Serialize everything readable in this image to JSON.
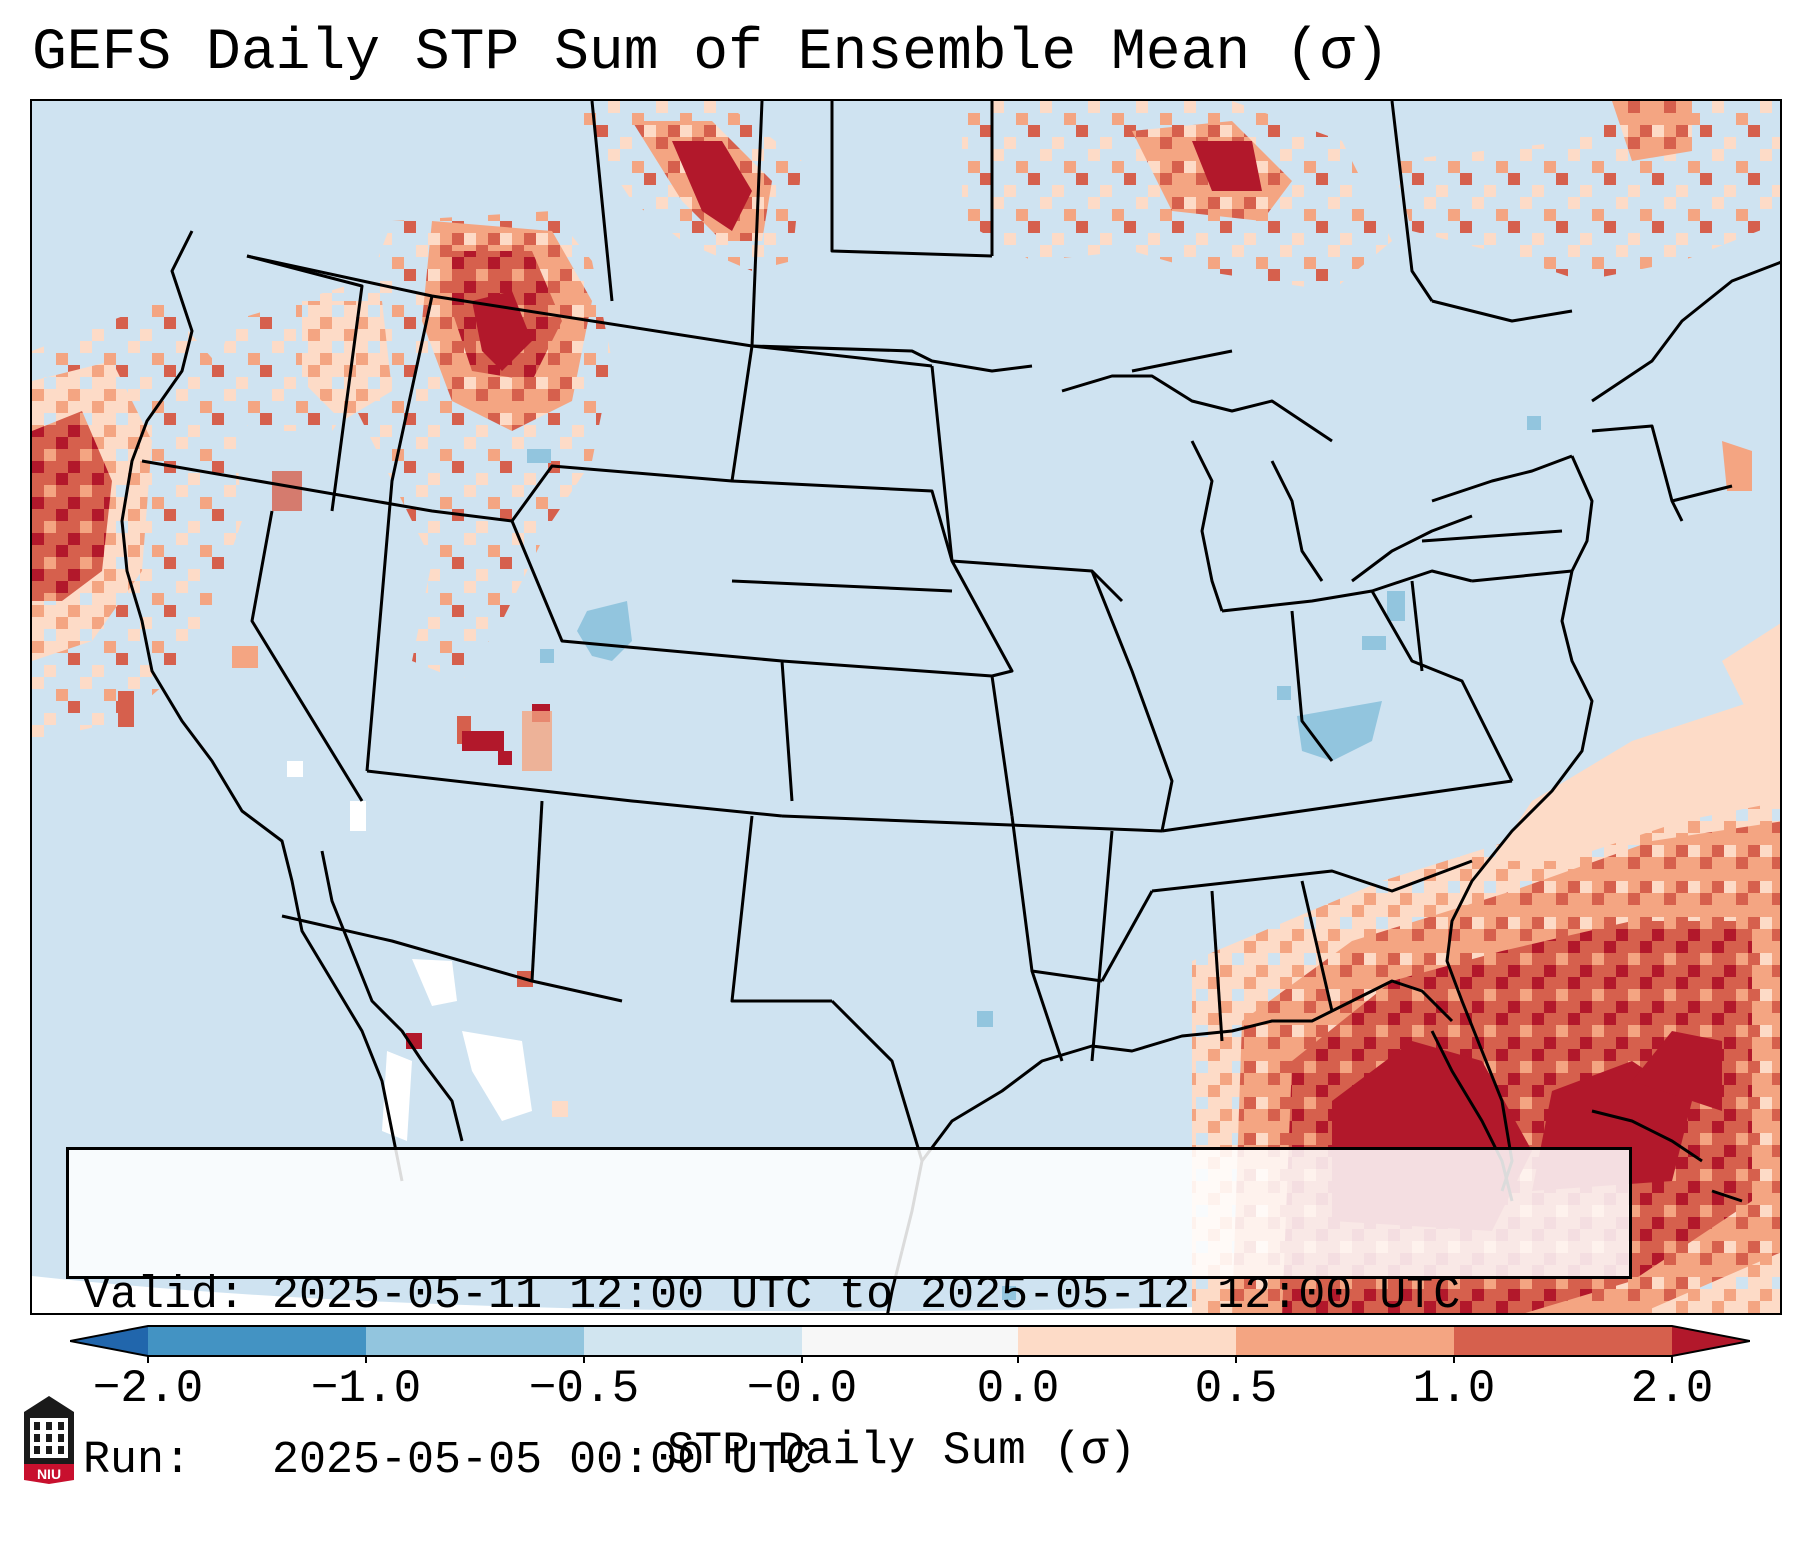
{
  "title": "GEFS Daily STP Sum of Ensemble Mean (σ)",
  "info": {
    "valid": "Valid: 2025-05-11 12:00 UTC to 2025-05-12 12:00 UTC",
    "run": "Run:   2025-05-05 00:00 UTC"
  },
  "colorbar": {
    "label": "STP Daily Sum (σ)",
    "ticks": [
      "−2.0",
      "−1.0",
      "−0.5",
      "−0.0",
      "0.0",
      "0.5",
      "1.0",
      "2.0"
    ],
    "bins": [
      {
        "range": "below -2.0",
        "color": "#2166ac"
      },
      {
        "range": "-2.0 to -1.0",
        "color": "#4393c3"
      },
      {
        "range": "-1.0 to -0.5",
        "color": "#92c5de"
      },
      {
        "range": "-0.5 to -0.0",
        "color": "#d1e5f0"
      },
      {
        "range": "-0.0 to 0.0",
        "color": "#f7f7f7"
      },
      {
        "range": "0.0 to 0.5",
        "color": "#fddbc7"
      },
      {
        "range": "0.5 to 1.0",
        "color": "#f4a582"
      },
      {
        "range": "1.0 to 2.0",
        "color": "#d6604d"
      },
      {
        "range": "above 2.0",
        "color": "#b2182b"
      }
    ]
  },
  "map_regions": [
    {
      "name": "southeast-us-gulf-atlantic",
      "level": "high",
      "value_range": "1.0 to 2.0+"
    },
    {
      "name": "idaho-montana-southern-canada",
      "level": "high",
      "value_range": "0.5 to 2.0+"
    },
    {
      "name": "pacific-northwest-coast",
      "level": "moderate-high",
      "value_range": "0.0 to 2.0+"
    },
    {
      "name": "canadian-prairies-ontario",
      "level": "moderate",
      "value_range": "0.0 to 2.0+"
    },
    {
      "name": "colorado-wyoming",
      "level": "low-negative",
      "value_range": "-1.0 to -0.5"
    },
    {
      "name": "tennessee-valley",
      "level": "low-negative",
      "value_range": "-1.0 to -0.5"
    }
  ],
  "logo": {
    "text": "NIU"
  }
}
